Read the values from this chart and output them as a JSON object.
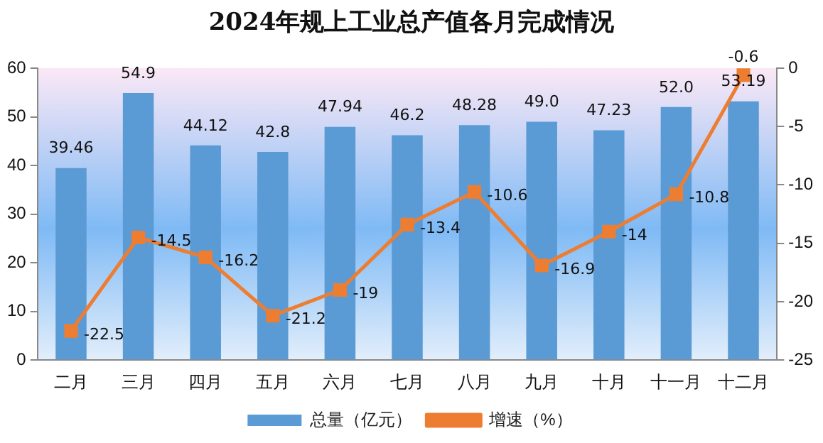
{
  "chart_data": {
    "type": "bar",
    "title": "2024年规上工业总产值各月完成情况",
    "categories": [
      "二月",
      "三月",
      "四月",
      "五月",
      "六月",
      "七月",
      "八月",
      "九月",
      "十月",
      "十一月",
      "十二月"
    ],
    "series": [
      {
        "name": "总量（亿元）",
        "color": "#5b9bd5",
        "values": [
          39.46,
          54.9,
          44.12,
          42.8,
          47.94,
          46.2,
          48.28,
          49.0,
          47.23,
          52.0,
          53.19
        ],
        "value_labels": [
          "39.46",
          "54.9",
          "44.12",
          "42.8",
          "47.94",
          "46.2",
          "48.28",
          "49.0",
          "47.23",
          "52.0",
          "53.19"
        ]
      },
      {
        "name": "增速（%）",
        "type": "line",
        "axis": "y2",
        "color": "#ed7d31",
        "values": [
          -22.5,
          -14.5,
          -16.2,
          -21.2,
          -19,
          -13.4,
          -10.6,
          -16.9,
          -14,
          -10.8,
          -0.6
        ],
        "value_labels": [
          "-22.5",
          "-14.5",
          "-16.2",
          "-21.2",
          "-19",
          "-13.4",
          "-10.6",
          "-16.9",
          "-14",
          "-10.8",
          "-0.6"
        ]
      }
    ],
    "ylim": [
      0,
      60
    ],
    "yticks": [
      0,
      10,
      20,
      30,
      40,
      50,
      60
    ],
    "y2lim": [
      -25,
      0
    ],
    "y2ticks": [
      -25,
      -20,
      -15,
      -10,
      -5,
      0
    ],
    "legend": "bottom",
    "marker": "square",
    "line_style": "solid",
    "grid": false
  }
}
